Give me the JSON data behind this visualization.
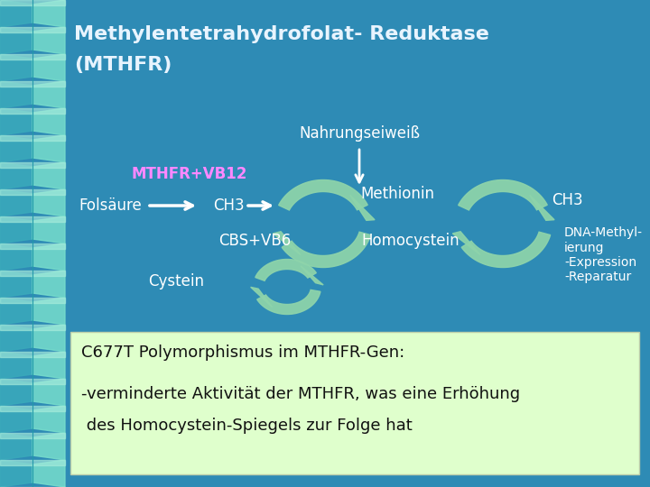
{
  "title_line1": "Methylentetrahydrofolat- Reduktase",
  "title_line2": "(MTHFR)",
  "bg_color": "#2E8BB5",
  "title_color": "#E8F4FF",
  "white_text": "#FFFFFF",
  "pink_text": "#FF88FF",
  "green_arrow_color": "#7FC9A0",
  "green_arrow_fill": "#8ED4AA",
  "box_bg": "#DFFFCC",
  "box_text_color": "#111111",
  "box_line1": "C677T Polymorphismus im MTHFR-Gen:",
  "box_line2": "-verminderte Aktivität der MTHFR, was eine Erhöhung",
  "box_line3": " des Homocystein-Spiegels zur Folge hat",
  "label_nahrung": "Nahrungseiweiß",
  "label_mthfr": "MTHFR+VB12",
  "label_folsaure": "Folsäure",
  "label_ch3_left": "CH3",
  "label_cbs": "CBS+VB6",
  "label_methionin": "Methionin",
  "label_homocystein": "Homocystein",
  "label_cystein": "Cystein",
  "label_ch3_right": "CH3",
  "label_dna1": "DNA-Methyl-",
  "label_dna2": "ierung",
  "label_dna3": "-Expression",
  "label_dna4": "-Reparatur"
}
